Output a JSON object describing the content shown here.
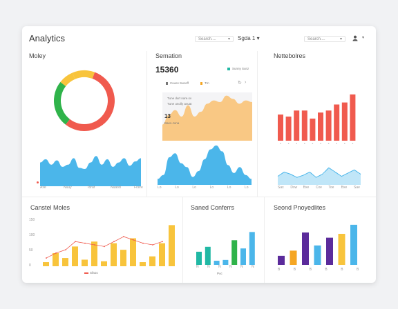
{
  "header": {
    "title": "Analytics",
    "search_placeholder": "Search....",
    "dropdown1": "Sgda 1",
    "search2_placeholder": "Search....",
    "user_icon": "user-icon",
    "chevron_icon": "chevron-down-icon"
  },
  "panels": {
    "p1": {
      "title": "Moley"
    },
    "p2": {
      "title": "Semation",
      "metric": "15360",
      "legend_label": "Sunny Sunz",
      "row_labels": [
        "Cuves Sunoff",
        "Trn"
      ],
      "note_lines": [
        "Tune durt nare.sv",
        "Tune unolly avuat"
      ],
      "overlay_num": "13",
      "overlay_sub": "Baes.Jona"
    },
    "p3": {
      "title": "Nettebolres"
    },
    "p4": {
      "title": "Canstel Moles"
    },
    "p5": {
      "title": "Saned Conferrs"
    },
    "p6": {
      "title": "Seond Pnoyedlites"
    }
  },
  "colors": {
    "red": "#f05a4e",
    "green": "#2fb34a",
    "yellow": "#f8c43c",
    "blue": "#4bb6ea",
    "orange": "#f5a623",
    "teal": "#21b8a4",
    "purple": "#5b2b9b",
    "peach": "#f9c57d"
  },
  "chart_data": [
    {
      "type": "pie",
      "id": "donut",
      "values": [
        55,
        25,
        8,
        12
      ],
      "colors": [
        "#f05a4e",
        "#2fb34a",
        "#f8c43c",
        "#f8c43c"
      ]
    },
    {
      "type": "area",
      "id": "area1",
      "values": [
        22,
        25,
        20,
        24,
        18,
        20,
        26,
        17,
        16,
        22,
        28,
        20,
        25,
        18,
        22,
        26,
        19,
        23,
        26
      ],
      "xticks": [
        "Axe",
        "Nuuy",
        "Toraf",
        "Nuaod",
        "Fcere"
      ]
    },
    {
      "type": "area",
      "id": "area2",
      "values": [
        6,
        10,
        28,
        32,
        22,
        18,
        8,
        14,
        26,
        36,
        40,
        34,
        20,
        12,
        18,
        10,
        6
      ],
      "xticks": [
        "Lo",
        "Lo",
        "Lo",
        "Lo",
        "Lo",
        "Lo"
      ]
    },
    {
      "type": "area",
      "id": "area3",
      "values": [
        20,
        32,
        38,
        30,
        44,
        30,
        36,
        46,
        50,
        48,
        56,
        52,
        46,
        50,
        48
      ]
    },
    {
      "type": "bar",
      "id": "bars-red",
      "values": [
        26,
        24,
        30,
        30,
        22,
        28,
        30,
        36,
        38,
        46
      ],
      "xticks": [
        "c",
        "c",
        "c",
        "c",
        "c",
        "c",
        "c",
        "c",
        "c",
        "c"
      ]
    },
    {
      "type": "area",
      "id": "area4",
      "values": [
        8,
        12,
        10,
        7,
        9,
        12,
        7,
        10,
        16,
        12,
        8,
        11,
        14,
        10
      ],
      "xticks": [
        "Sax",
        "Dsw",
        "Bxe",
        "Cxe",
        "Toe",
        "Bxe",
        "Sae"
      ]
    },
    {
      "type": "bar",
      "id": "combo",
      "values": [
        5,
        16,
        10,
        24,
        8,
        30,
        6,
        28,
        20,
        34,
        5,
        12,
        28,
        50
      ],
      "line": [
        10,
        16,
        20,
        30,
        28,
        26,
        24,
        30,
        36,
        32,
        28,
        26,
        30
      ],
      "yticks": [
        "150",
        "100",
        "50",
        "0"
      ],
      "legend": "Sfaoo"
    },
    {
      "type": "bar",
      "id": "bars-teal",
      "values": [
        16,
        22,
        5,
        6,
        30,
        20,
        40
      ],
      "xticks": [
        "N",
        "N",
        "N",
        "N",
        "N",
        "N"
      ],
      "legend": "Poc"
    },
    {
      "type": "bar",
      "id": "bars-multi",
      "values": [
        14,
        22,
        50,
        30,
        42,
        48,
        62
      ],
      "xticks": [
        "B",
        "B",
        "B",
        "B",
        "B",
        "B"
      ]
    }
  ]
}
